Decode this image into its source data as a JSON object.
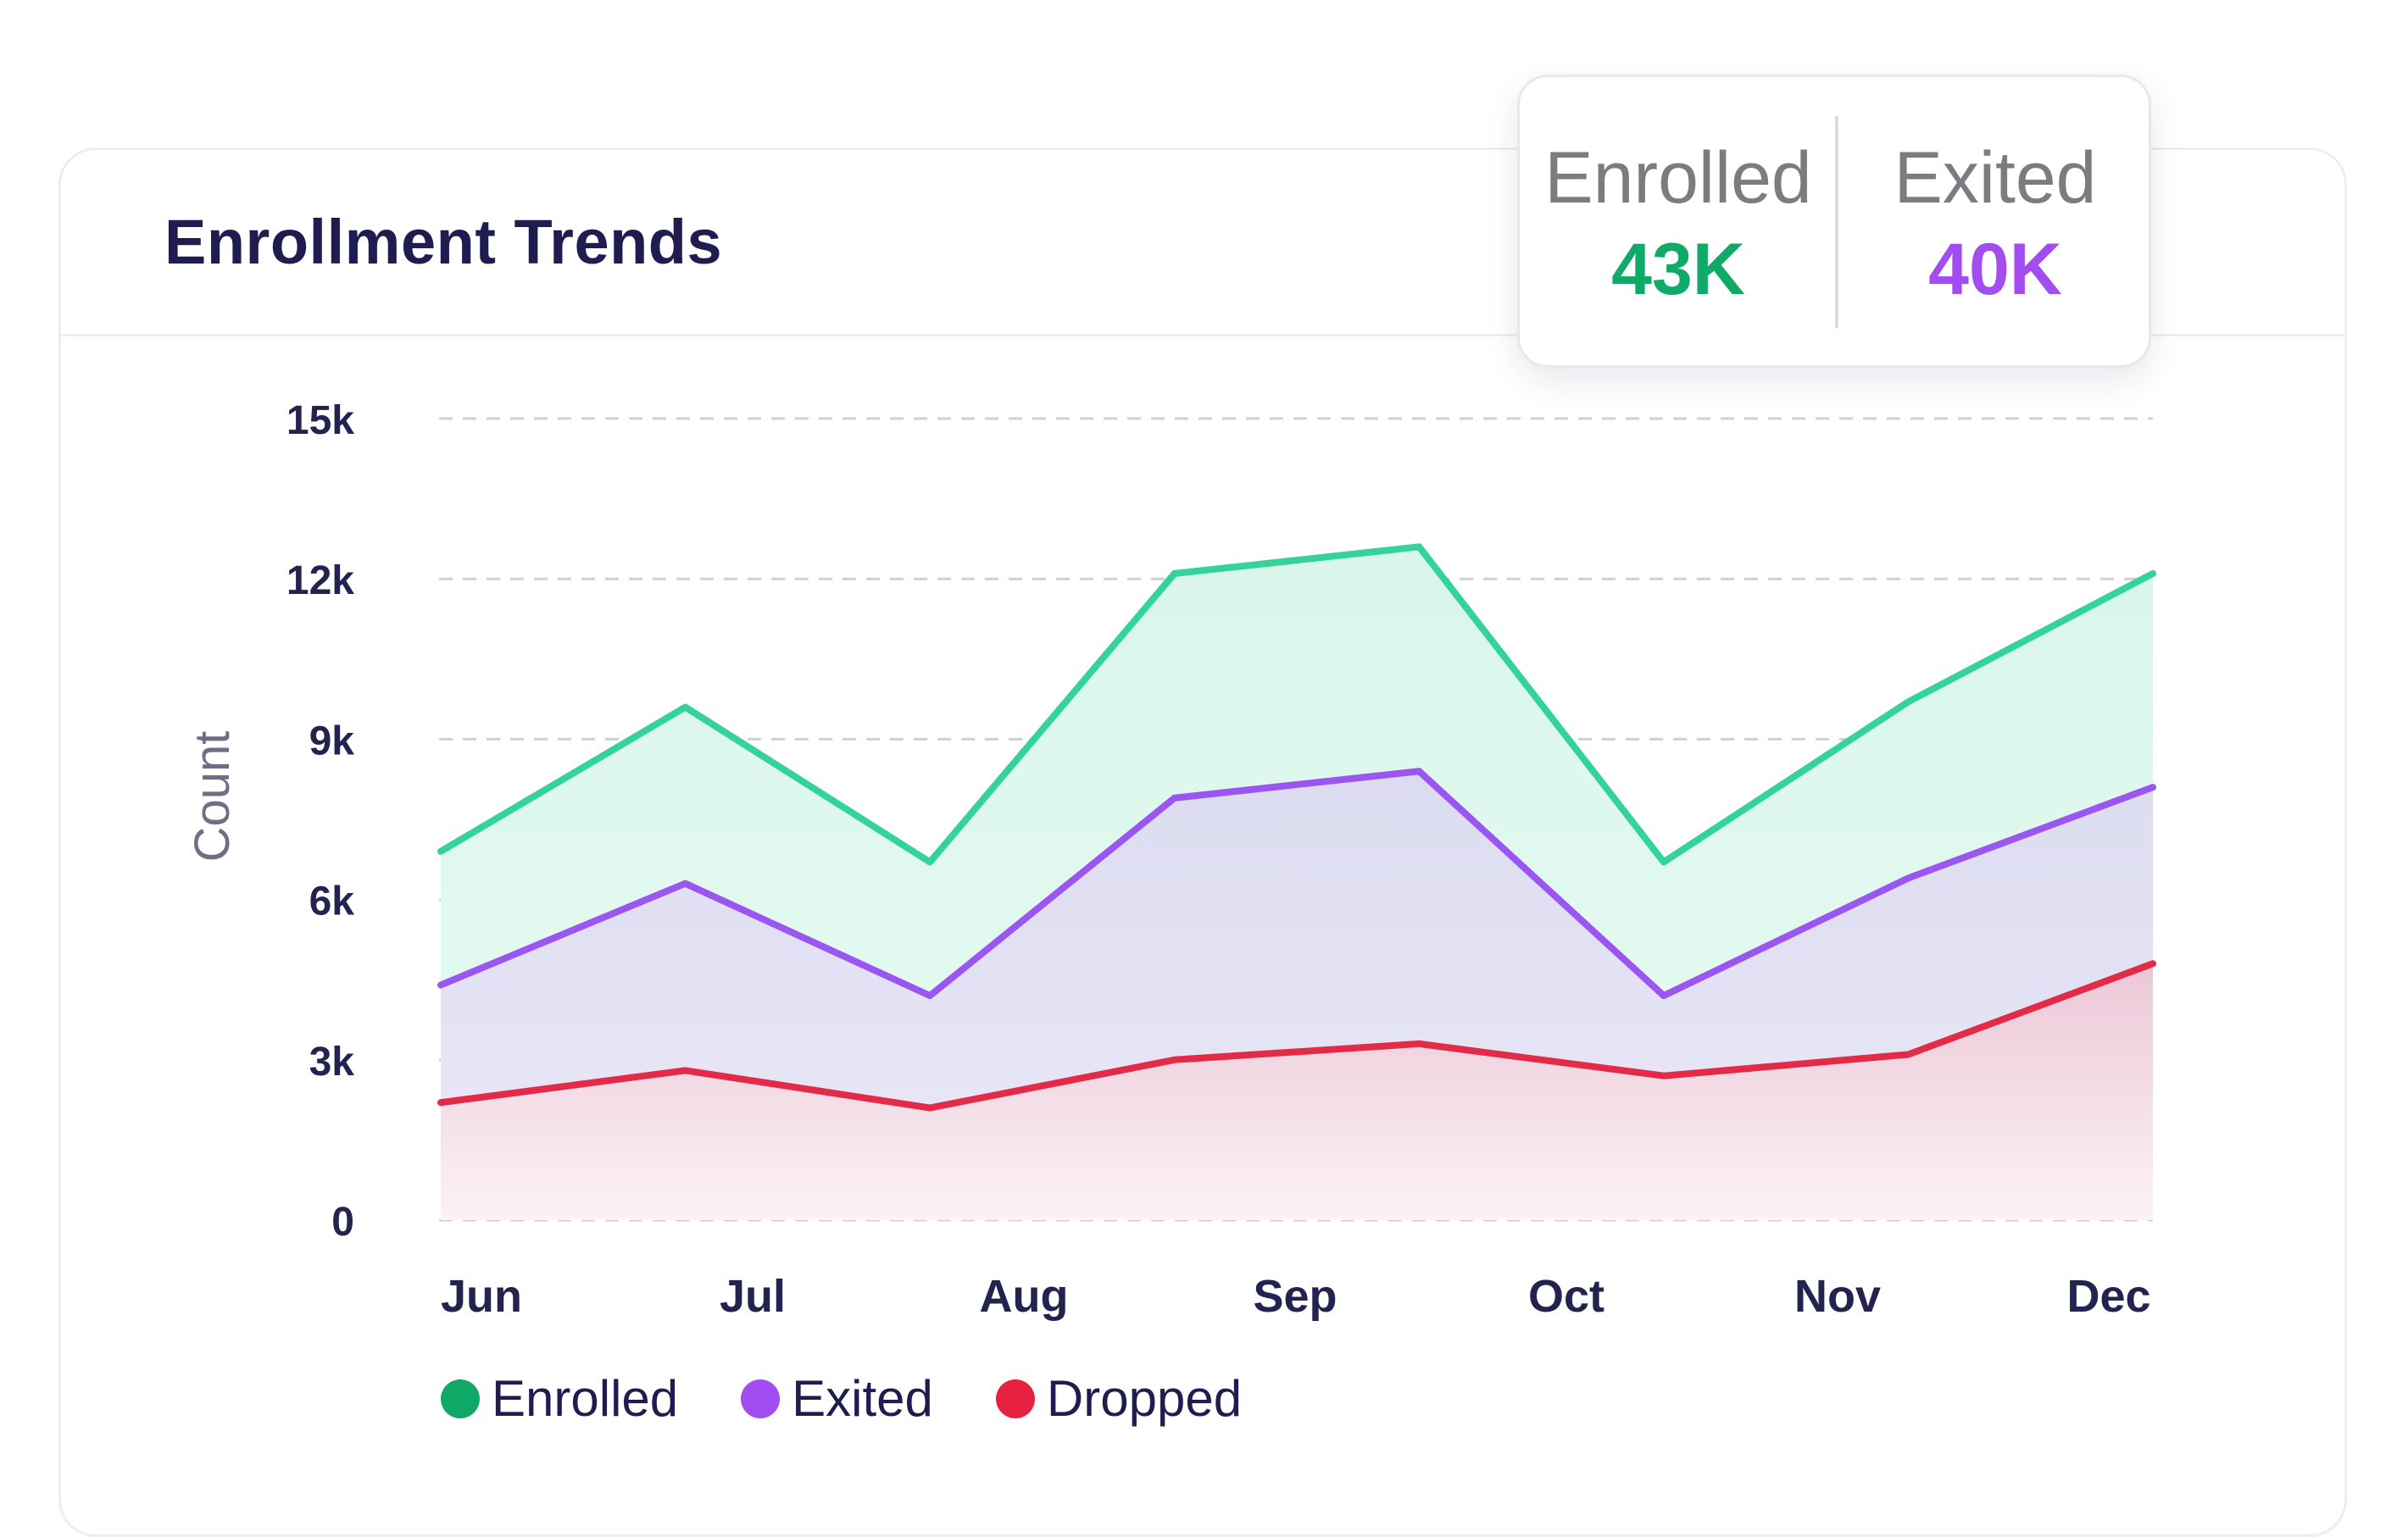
{
  "card": {
    "title": "Enrollment Trends"
  },
  "summary": {
    "enrolled_label": "Enrolled",
    "enrolled_value": "43K",
    "exited_label": "Exited",
    "exited_value": "40K"
  },
  "colors": {
    "enrolled": "#34d399",
    "exited": "#9b55f0",
    "dropped": "#e32b48",
    "enrolled_dot": "#10a866",
    "exited_dot": "#a34cf0",
    "dropped_dot": "#e8203f"
  },
  "chart_data": {
    "type": "area",
    "xlabel": "",
    "ylabel": "Count",
    "ylim": [
      0,
      15000
    ],
    "yticks": [
      0,
      3000,
      6000,
      9000,
      12000,
      15000
    ],
    "ytick_labels": [
      "0",
      "3k",
      "6k",
      "9k",
      "12k",
      "15k"
    ],
    "xtick_labels": [
      "Jun",
      "Jul",
      "Aug",
      "Sep",
      "Oct",
      "Nov",
      "Dec"
    ],
    "grid": true,
    "legend_position": "bottom-left",
    "series": [
      {
        "name": "Enrolled",
        "values": [
          6900,
          9600,
          6700,
          12100,
          12600,
          6700,
          9700,
          12100
        ]
      },
      {
        "name": "Exited",
        "values": [
          4400,
          6300,
          4200,
          7900,
          8400,
          4200,
          6400,
          8100
        ]
      },
      {
        "name": "Dropped",
        "values": [
          2200,
          2800,
          2100,
          3000,
          3300,
          2700,
          3100,
          4800
        ]
      }
    ]
  },
  "legend": [
    {
      "label": "Enrolled"
    },
    {
      "label": "Exited"
    },
    {
      "label": "Dropped"
    }
  ]
}
